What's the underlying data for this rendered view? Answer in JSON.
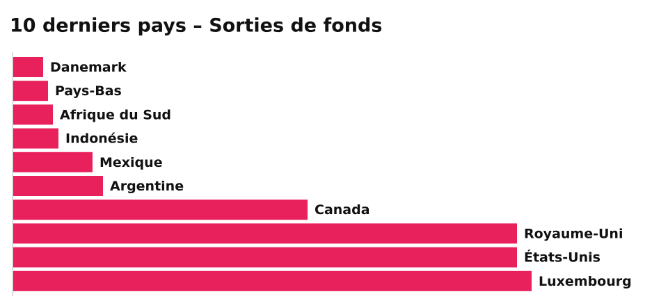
{
  "chart_data": {
    "type": "barh",
    "title": "10 derniers pays – Sorties de fonds",
    "categories": [
      "Danemark",
      "Pays-Bas",
      "Afrique du Sud",
      "Indonésie",
      "Mexique",
      "Argentine",
      "Canada",
      "Royaume-Uni",
      "États-Unis",
      "Luxembourg"
    ],
    "values": [
      4.3,
      5.0,
      5.7,
      6.5,
      11.4,
      12.9,
      42.3,
      72.4,
      72.4,
      74.5
    ],
    "color": "#e8205c",
    "xlim": [
      0,
      80
    ]
  }
}
